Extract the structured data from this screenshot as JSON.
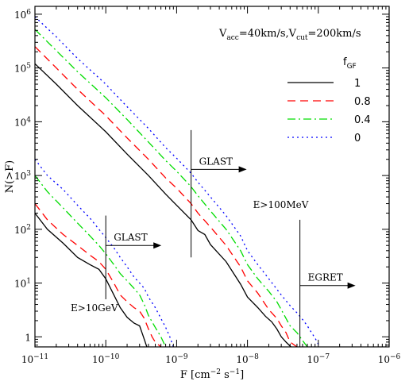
{
  "chart_data": {
    "type": "line",
    "x_scale": "log",
    "y_scale": "log",
    "xlim": [
      1e-11,
      1e-06
    ],
    "ylim": [
      0.65,
      1400000
    ],
    "grid": false,
    "xlabel": "F [cm⁻² s⁻¹]",
    "xlabel_parts": {
      "base": "F [cm",
      "exp1": "−2",
      "mid": " s",
      "exp2": "−1",
      "end": "]"
    },
    "ylabel": "N(>F)",
    "x_ticks": [
      {
        "value": 1e-11,
        "base": "10",
        "exp": "−11"
      },
      {
        "value": 1e-10,
        "base": "10",
        "exp": "−10"
      },
      {
        "value": 1e-09,
        "base": "10",
        "exp": "−9"
      },
      {
        "value": 1e-08,
        "base": "10",
        "exp": "−8"
      },
      {
        "value": 1e-07,
        "base": "10",
        "exp": "−7"
      },
      {
        "value": 1e-06,
        "base": "10",
        "exp": "−6"
      }
    ],
    "y_ticks": [
      {
        "value": 1,
        "base": "1",
        "exp": ""
      },
      {
        "value": 10,
        "base": "10",
        "exp": "1"
      },
      {
        "value": 100,
        "base": "10",
        "exp": "2"
      },
      {
        "value": 1000,
        "base": "10",
        "exp": "3"
      },
      {
        "value": 10000,
        "base": "10",
        "exp": "4"
      },
      {
        "value": 100000,
        "base": "10",
        "exp": "5"
      },
      {
        "value": 1000000,
        "base": "10",
        "exp": "6"
      }
    ],
    "header": {
      "text1": "V",
      "sub1": "acc",
      "text2": "=40km/s,V",
      "sub2": "cut",
      "text3": "=200km/s"
    },
    "legend": {
      "title": "f",
      "title_sub": "GF",
      "placement": "upper-right",
      "entries": [
        {
          "label": "1",
          "color": "#000000",
          "dash": "none"
        },
        {
          "label": "0.8",
          "color": "#ff0000",
          "dash": "10,6"
        },
        {
          "label": "0.4",
          "color": "#00dd00",
          "dash": "10,4,2,4"
        },
        {
          "label": "0",
          "color": "#0000ff",
          "dash": "2,4"
        }
      ]
    },
    "annotations": [
      {
        "text": "GLAST",
        "x": 1.6e-09,
        "y_low": 30,
        "y_high": 7000,
        "label_y": 1300
      },
      {
        "text": "GLAST",
        "x": 1e-10,
        "y_low": 5,
        "y_high": 180,
        "label_y": 50
      },
      {
        "text": "EGRET",
        "x": 5.5e-08,
        "y_low": 0.65,
        "y_high": 150,
        "label_y": 9
      },
      {
        "text": "E>100MeV",
        "x": 1.2e-08,
        "y": 250
      },
      {
        "text": "E>10GeV",
        "x": 3.2e-11,
        "y": 3
      }
    ],
    "groups": [
      {
        "name": "E>100MeV",
        "series": [
          {
            "label": "1",
            "color": "#000000",
            "dash": "none",
            "x": [
              1e-11,
              2e-11,
              4e-11,
              1e-10,
              2e-10,
              4e-10,
              7e-10,
              1e-09,
              1.6e-09,
              2e-09,
              2.5e-09,
              3e-09,
              5e-09,
              8e-09,
              1e-08,
              1.4e-08,
              1.8e-08,
              2.2e-08,
              2.6e-08,
              3e-08,
              3.5e-08,
              4.1e-08
            ],
            "y": [
              120000,
              50000,
              20000,
              6500,
              2500,
              1000,
              450,
              280,
              150,
              95,
              80,
              52,
              25,
              9.5,
              5.5,
              3.5,
              2.4,
              1.9,
              1.4,
              1.0,
              0.8,
              0.65
            ]
          },
          {
            "label": "0.8",
            "color": "#ff0000",
            "dash": "10,6",
            "x": [
              1e-11,
              2e-11,
              4e-11,
              1e-10,
              2e-10,
              4e-10,
              7e-10,
              1e-09,
              1.6e-09,
              2e-09,
              3e-09,
              5e-09,
              8e-09,
              1e-08,
              1.4e-08,
              2e-08,
              2.6e-08,
              3e-08,
              3.5e-08,
              4e-08,
              5e-08
            ],
            "y": [
              250000,
              100000,
              40000,
              13000,
              5000,
              2000,
              900,
              580,
              300,
              200,
              110,
              50,
              20,
              11,
              6.5,
              3.2,
              2.2,
              1.6,
              1.2,
              0.8,
              0.65
            ]
          },
          {
            "label": "0.4",
            "color": "#00dd00",
            "dash": "10,4,2,4",
            "x": [
              1e-11,
              2e-11,
              4e-11,
              1e-10,
              2e-10,
              4e-10,
              7e-10,
              1e-09,
              1.6e-09,
              2e-09,
              3e-09,
              5e-09,
              8e-09,
              1e-08,
              1.4e-08,
              2e-08,
              2.6e-08,
              3e-08,
              3.5e-08,
              4e-08,
              5e-08,
              6e-08,
              7e-08
            ],
            "y": [
              520000,
              210000,
              85000,
              28000,
              11000,
              4200,
              1900,
              1200,
              620,
              420,
              220,
              100,
              40,
              22,
              12,
              7,
              4.5,
              3.2,
              2.2,
              1.6,
              1.2,
              0.85,
              0.65
            ]
          },
          {
            "label": "0",
            "color": "#0000ff",
            "dash": "2,4",
            "x": [
              1e-11,
              2e-11,
              4e-11,
              1e-10,
              2e-10,
              4e-10,
              7e-10,
              1e-09,
              1.6e-09,
              2e-09,
              3e-09,
              5e-09,
              8e-09,
              1e-08,
              1.4e-08,
              2e-08,
              3e-08,
              4e-08,
              5e-08,
              6e-08,
              7e-08,
              8e-08,
              9e-08,
              1.05e-07
            ],
            "y": [
              900000,
              380000,
              150000,
              50000,
              19000,
              7500,
              3300,
              2100,
              1100,
              750,
              400,
              180,
              75,
              40,
              22,
              12,
              6,
              3.8,
              2.8,
              2.1,
              1.6,
              1.2,
              0.95,
              0.65
            ]
          }
        ]
      },
      {
        "name": "E>10GeV",
        "series": [
          {
            "label": "1",
            "color": "#000000",
            "dash": "none",
            "x": [
              1e-11,
              1.5e-11,
              2.5e-11,
              4e-11,
              6e-11,
              8e-11,
              1e-10,
              1.3e-10,
              1.6e-10,
              2e-10,
              2.5e-10,
              3e-10,
              3.4e-10,
              3.8e-10
            ],
            "y": [
              200,
              100,
              55,
              30,
              22,
              18,
              12,
              6,
              3.5,
              2.3,
              1.8,
              1.6,
              1.0,
              0.65
            ]
          },
          {
            "label": "0.8",
            "color": "#ff0000",
            "dash": "10,6",
            "x": [
              1e-11,
              1.5e-11,
              2.5e-11,
              4e-11,
              6e-11,
              8e-11,
              1e-10,
              1.3e-10,
              1.6e-10,
              2e-10,
              2.5e-10,
              3e-10,
              3.5e-10,
              4e-10,
              4.5e-10,
              5e-10,
              6e-10
            ],
            "y": [
              300,
              150,
              80,
              50,
              33,
              25,
              18,
              10,
              6,
              4.5,
              3.5,
              3,
              2.2,
              1.4,
              1.0,
              0.8,
              0.65
            ]
          },
          {
            "label": "0.4",
            "color": "#00dd00",
            "dash": "10,4,2,4",
            "x": [
              1e-11,
              1.5e-11,
              2.5e-11,
              4e-11,
              6e-11,
              8e-11,
              1e-10,
              1.3e-10,
              1.6e-10,
              2e-10,
              2.5e-10,
              3e-10,
              3.5e-10,
              4e-10,
              5e-10,
              6e-10,
              7e-10
            ],
            "y": [
              1000,
              500,
              250,
              130,
              75,
              50,
              35,
              22,
              15,
              11,
              8,
              6,
              4,
              2.5,
              1.5,
              1.0,
              0.65
            ]
          },
          {
            "label": "0",
            "color": "#0000ff",
            "dash": "2,4",
            "x": [
              1e-11,
              1.5e-11,
              2.5e-11,
              4e-11,
              6e-11,
              8e-11,
              1e-10,
              1.3e-10,
              1.6e-10,
              2e-10,
              2.5e-10,
              3e-10,
              3.5e-10,
              4e-10,
              5e-10,
              6e-10,
              7e-10,
              8e-10,
              9e-10
            ],
            "y": [
              2000,
              1000,
              550,
              280,
              160,
              100,
              70,
              45,
              30,
              20,
              13,
              10,
              8,
              5.5,
              3.5,
              2.2,
              1.5,
              1.0,
              0.65
            ]
          }
        ]
      }
    ]
  }
}
